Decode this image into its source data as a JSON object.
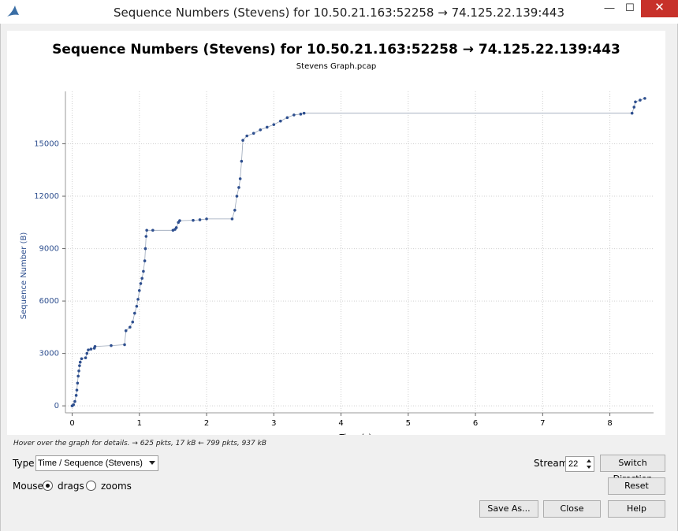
{
  "window": {
    "title": "Sequence Numbers (Stevens) for 10.50.21.163:52258 → 74.125.22.139:443",
    "minimize": "—",
    "maximize": "☐",
    "close": "✕",
    "app_icon": "wireshark-fin-icon"
  },
  "plot": {
    "title": "Sequence Numbers (Stevens) for 10.50.21.163:52258 → 74.125.22.139:443",
    "subtitle": "Stevens Graph.pcap"
  },
  "chart_data": {
    "type": "scatter",
    "xlabel": "Time (s)",
    "ylabel": "Sequence Number (B)",
    "xlim": [
      -0.1,
      8.65
    ],
    "ylim": [
      -400,
      18000
    ],
    "x_ticks": [
      0,
      1,
      2,
      3,
      4,
      5,
      6,
      7,
      8
    ],
    "y_ticks": [
      0,
      3000,
      6000,
      9000,
      12000,
      15000
    ],
    "grid": true,
    "series": [
      {
        "color": "#2e4f8f",
        "points": [
          [
            0.0,
            0
          ],
          [
            0.02,
            60
          ],
          [
            0.04,
            250
          ],
          [
            0.06,
            600
          ],
          [
            0.07,
            900
          ],
          [
            0.08,
            1300
          ],
          [
            0.09,
            1700
          ],
          [
            0.1,
            2000
          ],
          [
            0.11,
            2300
          ],
          [
            0.12,
            2500
          ],
          [
            0.14,
            2700
          ],
          [
            0.2,
            2750
          ],
          [
            0.22,
            3000
          ],
          [
            0.24,
            3200
          ],
          [
            0.28,
            3250
          ],
          [
            0.33,
            3300
          ],
          [
            0.34,
            3400
          ],
          [
            0.58,
            3450
          ],
          [
            0.78,
            3500
          ],
          [
            0.8,
            4300
          ],
          [
            0.86,
            4500
          ],
          [
            0.9,
            4800
          ],
          [
            0.93,
            5300
          ],
          [
            0.96,
            5700
          ],
          [
            0.98,
            6100
          ],
          [
            1.0,
            6600
          ],
          [
            1.02,
            7000
          ],
          [
            1.04,
            7300
          ],
          [
            1.06,
            7700
          ],
          [
            1.08,
            8300
          ],
          [
            1.09,
            9000
          ],
          [
            1.1,
            9700
          ],
          [
            1.11,
            10050
          ],
          [
            1.2,
            10050
          ],
          [
            1.5,
            10050
          ],
          [
            1.53,
            10100
          ],
          [
            1.55,
            10200
          ],
          [
            1.58,
            10500
          ],
          [
            1.6,
            10600
          ],
          [
            1.8,
            10620
          ],
          [
            1.9,
            10650
          ],
          [
            2.0,
            10700
          ],
          [
            2.38,
            10700
          ],
          [
            2.42,
            11200
          ],
          [
            2.45,
            12000
          ],
          [
            2.48,
            12500
          ],
          [
            2.5,
            13000
          ],
          [
            2.52,
            14000
          ],
          [
            2.54,
            15200
          ],
          [
            2.6,
            15450
          ],
          [
            2.7,
            15600
          ],
          [
            2.8,
            15800
          ],
          [
            2.9,
            15950
          ],
          [
            3.0,
            16100
          ],
          [
            3.1,
            16300
          ],
          [
            3.2,
            16500
          ],
          [
            3.3,
            16650
          ],
          [
            3.4,
            16700
          ],
          [
            3.45,
            16750
          ],
          [
            8.33,
            16750
          ],
          [
            8.36,
            17100
          ],
          [
            8.38,
            17400
          ],
          [
            8.45,
            17500
          ],
          [
            8.52,
            17600
          ]
        ]
      }
    ]
  },
  "status": {
    "hint": "Hover over the graph for details. → 625 pkts, 17 kB ← 799 pkts, 937 kB"
  },
  "controls": {
    "type_label": "Type",
    "type_value": "Time / Sequence (Stevens)",
    "mouse_label": "Mouse",
    "drags_label": "drags",
    "zooms_label": "zooms",
    "mouse_mode": "drags",
    "stream_label": "Stream",
    "stream_value": "22",
    "switch_direction": "Switch Direction",
    "reset": "Reset",
    "save_as": "Save As...",
    "close": "Close",
    "help": "Help"
  }
}
